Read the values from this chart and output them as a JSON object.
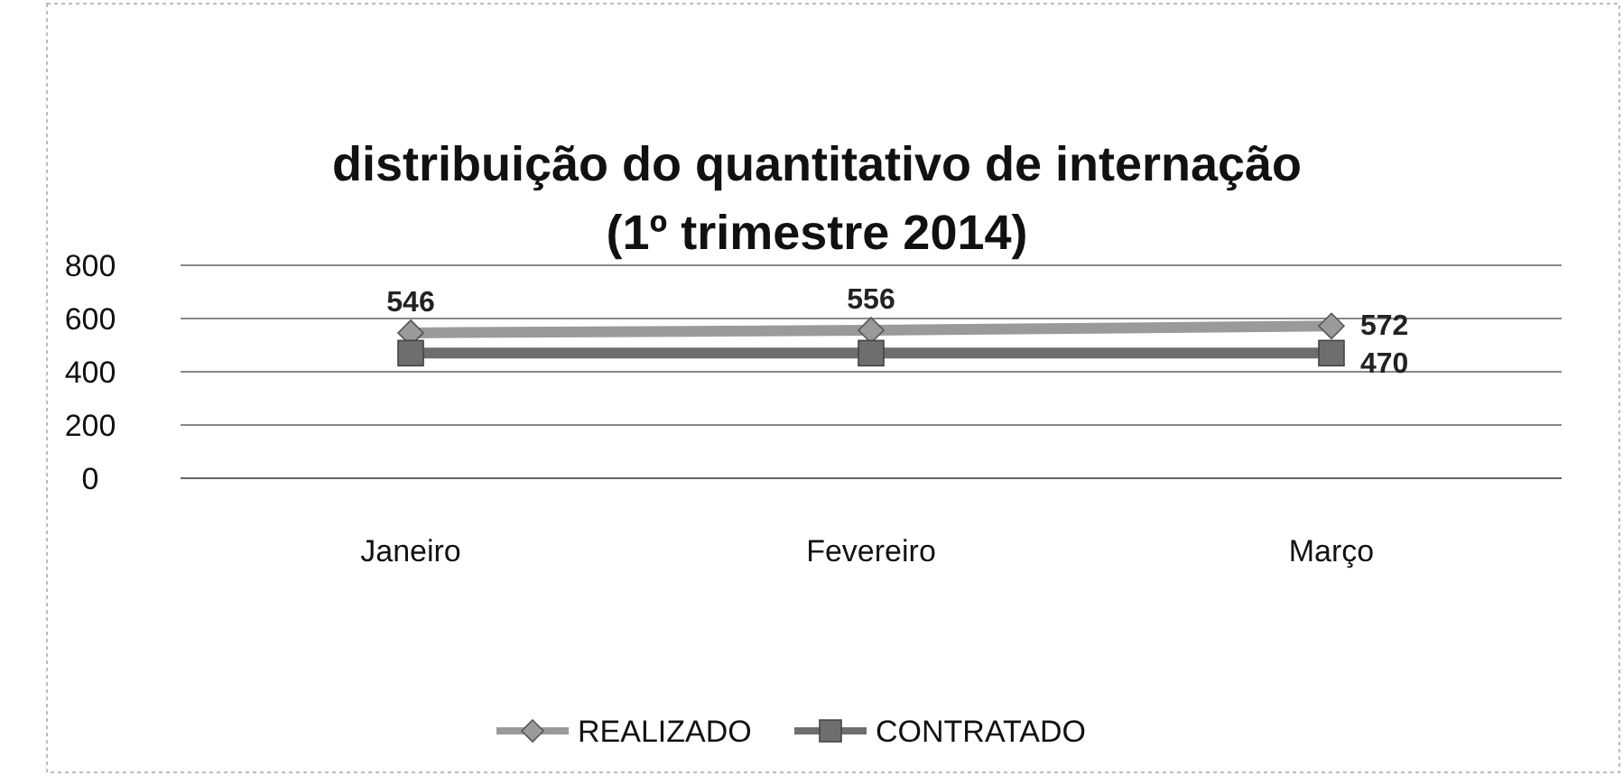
{
  "chart_data": {
    "type": "line",
    "title": "distribuição do quantitativo de internação",
    "subtitle": "(1º trimestre 2014)",
    "categories": [
      "Janeiro",
      "Fevereiro",
      "Março"
    ],
    "series": [
      {
        "name": "REALIZADO",
        "color": "#9a9a9a",
        "marker": "diamond",
        "values": [
          546,
          556,
          572
        ],
        "value_labels": [
          "546",
          "556",
          "572"
        ]
      },
      {
        "name": "CONTRATADO",
        "color": "#6e6e6e",
        "marker": "square",
        "values": [
          470,
          470,
          470
        ],
        "value_labels": [
          null,
          null,
          "470"
        ]
      }
    ],
    "ylim": [
      0,
      800
    ],
    "yticks": [
      0,
      200,
      400,
      600,
      800
    ],
    "grid": "y",
    "legend": "bottom"
  }
}
